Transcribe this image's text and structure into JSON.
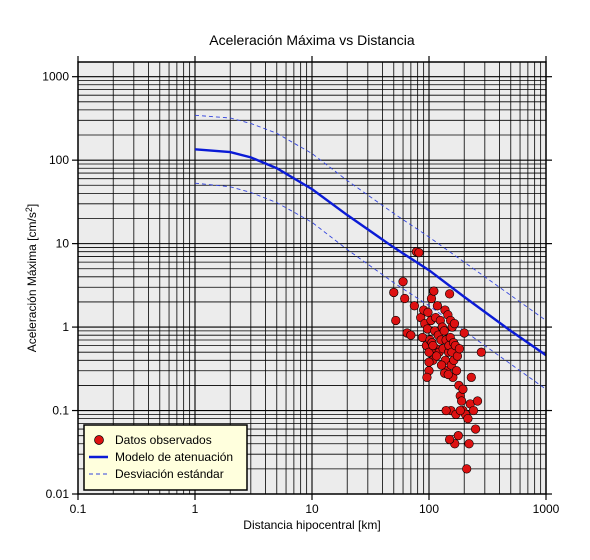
{
  "chart_data": {
    "type": "scatter",
    "title": "Aceleración Máxima vs Distancia",
    "xlabel": "Distancia hipocentral [km]",
    "ylabel_main": "Aceleración Máxima [cm/s",
    "ylabel_sup": "2",
    "ylabel_end": "]",
    "xscale": "log",
    "yscale": "log",
    "xlim": [
      0.1,
      1000
    ],
    "ylim": [
      0.01,
      1500
    ],
    "x_ticks": [
      0.1,
      1,
      10,
      100,
      1000
    ],
    "x_tick_labels": [
      "0.1",
      "1",
      "10",
      "100",
      "1000"
    ],
    "y_ticks": [
      0.01,
      0.1,
      1,
      10,
      100,
      1000
    ],
    "y_tick_labels": [
      "0.01",
      "0.1",
      "1",
      "10",
      "100",
      "1000"
    ],
    "grid": true,
    "legend_position": "bottom-left",
    "legend": [
      {
        "label": "Datos observados",
        "kind": "marker"
      },
      {
        "label": "Modelo de atenuación",
        "kind": "line"
      },
      {
        "label": "Desviación estándar",
        "kind": "dashed"
      }
    ],
    "colors": {
      "points": "#dd1111",
      "model": "#0b1bd6",
      "deviation": "#3344dd",
      "legend_bg": "#ffffdd",
      "plot_bg": "#ececec"
    },
    "series": [
      {
        "name": "Modelo de atenuación",
        "style": "solid",
        "x": [
          1,
          2,
          3,
          5,
          10,
          20,
          50,
          100,
          200,
          500,
          1000
        ],
        "y": [
          135,
          125,
          108,
          80,
          45,
          22,
          9,
          4.8,
          2.3,
          0.9,
          0.46
        ]
      },
      {
        "name": "Desviación estándar",
        "style": "dashed",
        "x": [
          1,
          2,
          3,
          5,
          10,
          20,
          50,
          100,
          200,
          500,
          1000
        ],
        "y": [
          345,
          320,
          275,
          210,
          120,
          57,
          23,
          12,
          6,
          2.4,
          1.2
        ]
      },
      {
        "name": "Desviación estándar",
        "style": "dashed",
        "x": [
          1,
          2,
          3,
          5,
          10,
          20,
          50,
          100,
          200,
          500,
          1000
        ],
        "y": [
          53,
          48,
          41,
          31,
          18,
          8.5,
          3.4,
          1.8,
          0.9,
          0.36,
          0.18
        ]
      },
      {
        "name": "Datos observados",
        "style": "markers",
        "points": [
          [
            50,
            2.6
          ],
          [
            52,
            1.2
          ],
          [
            60,
            3.5
          ],
          [
            62,
            2.2
          ],
          [
            65,
            0.85
          ],
          [
            70,
            0.8
          ],
          [
            75,
            1.8
          ],
          [
            78,
            8
          ],
          [
            82,
            7.8
          ],
          [
            85,
            1.3
          ],
          [
            88,
            0.75
          ],
          [
            90,
            1.6
          ],
          [
            92,
            1.1
          ],
          [
            95,
            0.6
          ],
          [
            97,
            0.95
          ],
          [
            98,
            1.5
          ],
          [
            100,
            0.3
          ],
          [
            100,
            0.5
          ],
          [
            102,
            0.7
          ],
          [
            104,
            1.2
          ],
          [
            105,
            2.2
          ],
          [
            106,
            0.65
          ],
          [
            108,
            0.4
          ],
          [
            110,
            2.7
          ],
          [
            112,
            0.9
          ],
          [
            114,
            1.3
          ],
          [
            115,
            0.55
          ],
          [
            118,
            1.8
          ],
          [
            120,
            0.8
          ],
          [
            122,
            0.5
          ],
          [
            125,
            1.2
          ],
          [
            127,
            0.7
          ],
          [
            130,
            1.0
          ],
          [
            132,
            0.55
          ],
          [
            135,
            0.9
          ],
          [
            137,
            1.6
          ],
          [
            138,
            0.4
          ],
          [
            140,
            0.7
          ],
          [
            142,
            0.3
          ],
          [
            145,
            1.4
          ],
          [
            147,
            0.5
          ],
          [
            148,
            0.6
          ],
          [
            150,
            2.5
          ],
          [
            152,
            0.75
          ],
          [
            153,
            1.2
          ],
          [
            155,
            0.35
          ],
          [
            157,
            0.5
          ],
          [
            158,
            1.0
          ],
          [
            160,
            0.25
          ],
          [
            162,
            0.65
          ],
          [
            163,
            0.4
          ],
          [
            165,
            1.1
          ],
          [
            168,
            0.6
          ],
          [
            172,
            0.3
          ],
          [
            175,
            0.45
          ],
          [
            180,
            0.2
          ],
          [
            182,
            0.55
          ],
          [
            185,
            0.15
          ],
          [
            190,
            0.13
          ],
          [
            195,
            0.1
          ],
          [
            200,
            0.85
          ],
          [
            205,
            0.09
          ],
          [
            210,
            0.02
          ],
          [
            215,
            0.08
          ],
          [
            220,
            0.04
          ],
          [
            225,
            0.12
          ],
          [
            230,
            0.25
          ],
          [
            240,
            0.1
          ],
          [
            250,
            0.06
          ],
          [
            260,
            0.13
          ],
          [
            280,
            0.5
          ],
          [
            96,
            0.25
          ],
          [
            100,
            0.38
          ],
          [
            108,
            0.6
          ],
          [
            116,
            0.45
          ],
          [
            128,
            0.35
          ],
          [
            136,
            0.28
          ],
          [
            146,
            0.27
          ],
          [
            154,
            0.1
          ],
          [
            170,
            0.09
          ],
          [
            178,
            0.05
          ],
          [
            166,
            0.04
          ],
          [
            140,
            0.1
          ],
          [
            150,
            0.045
          ],
          [
            185,
            0.1
          ],
          [
            195,
            0.18
          ]
        ]
      }
    ]
  }
}
